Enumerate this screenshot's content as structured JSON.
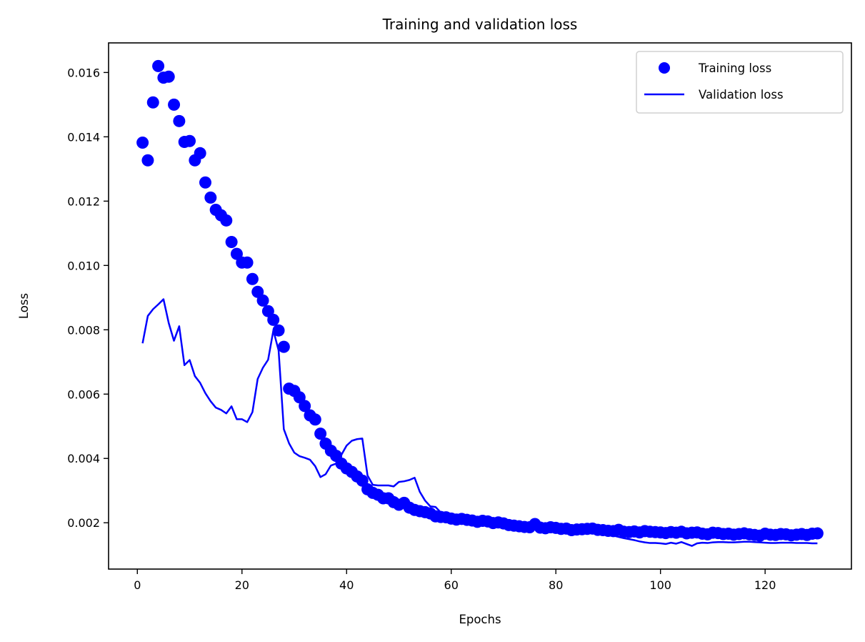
{
  "chart_data": {
    "type": "line",
    "title": "Training and validation loss",
    "xlabel": "Epochs",
    "ylabel": "Loss",
    "xlim": [
      -5.5,
      136.5
    ],
    "ylim": [
      0.00056,
      0.01692
    ],
    "xticks": [
      0,
      20,
      40,
      60,
      80,
      100,
      120
    ],
    "xtick_labels": [
      "0",
      "20",
      "40",
      "60",
      "80",
      "100",
      "120"
    ],
    "yticks": [
      0.002,
      0.004,
      0.006,
      0.008,
      0.01,
      0.012,
      0.014,
      0.016
    ],
    "ytick_labels": [
      "0.002",
      "0.004",
      "0.006",
      "0.008",
      "0.010",
      "0.012",
      "0.014",
      "0.016"
    ],
    "grid": false,
    "legend_position": "upper-right",
    "color": "#0000ff",
    "series": [
      {
        "name": "Training loss",
        "style": "markers",
        "x_start": 1,
        "values": [
          0.01382,
          0.01327,
          0.01507,
          0.0162,
          0.01584,
          0.01587,
          0.015,
          0.01449,
          0.01384,
          0.01387,
          0.01327,
          0.01349,
          0.01258,
          0.01211,
          0.01173,
          0.01156,
          0.0114,
          0.01073,
          0.01036,
          0.01009,
          0.01009,
          0.00958,
          0.00918,
          0.00891,
          0.00858,
          0.00831,
          0.00798,
          0.00747,
          0.00617,
          0.0061,
          0.0059,
          0.00563,
          0.00534,
          0.00521,
          0.00477,
          0.00446,
          0.00424,
          0.00408,
          0.00384,
          0.00369,
          0.00358,
          0.00344,
          0.00331,
          0.00304,
          0.00293,
          0.00287,
          0.00276,
          0.00276,
          0.00264,
          0.00256,
          0.00262,
          0.00247,
          0.0024,
          0.00236,
          0.00233,
          0.00229,
          0.0022,
          0.00218,
          0.00217,
          0.00213,
          0.0021,
          0.00212,
          0.00209,
          0.00207,
          0.00203,
          0.00206,
          0.00204,
          0.00199,
          0.00201,
          0.00198,
          0.00193,
          0.00191,
          0.00189,
          0.00187,
          0.00186,
          0.00196,
          0.00185,
          0.00183,
          0.00186,
          0.00184,
          0.00181,
          0.00182,
          0.00177,
          0.00179,
          0.0018,
          0.00181,
          0.00182,
          0.00178,
          0.00177,
          0.00175,
          0.00174,
          0.00178,
          0.00172,
          0.00171,
          0.00173,
          0.0017,
          0.00174,
          0.00172,
          0.00171,
          0.0017,
          0.00168,
          0.00171,
          0.00169,
          0.00172,
          0.00167,
          0.00169,
          0.0017,
          0.00166,
          0.00164,
          0.00169,
          0.00168,
          0.00165,
          0.00166,
          0.00163,
          0.00165,
          0.00167,
          0.00164,
          0.00162,
          0.0016,
          0.00166,
          0.00163,
          0.00162,
          0.00165,
          0.00164,
          0.00161,
          0.00163,
          0.00165,
          0.00162,
          0.00166,
          0.00167
        ]
      },
      {
        "name": "Validation loss",
        "style": "line",
        "x_start": 1,
        "values": [
          0.00758,
          0.00843,
          0.00864,
          0.00879,
          0.00895,
          0.00821,
          0.00766,
          0.00811,
          0.0069,
          0.00706,
          0.00656,
          0.00635,
          0.00603,
          0.00578,
          0.00558,
          0.00551,
          0.0054,
          0.00562,
          0.00522,
          0.00522,
          0.00513,
          0.00544,
          0.00647,
          0.00682,
          0.00707,
          0.00798,
          0.00736,
          0.00491,
          0.00447,
          0.00418,
          0.00407,
          0.00402,
          0.00396,
          0.00376,
          0.00342,
          0.00351,
          0.00378,
          0.00384,
          0.00411,
          0.0044,
          0.00455,
          0.0046,
          0.00462,
          0.00347,
          0.00318,
          0.00316,
          0.00316,
          0.00316,
          0.00313,
          0.00327,
          0.00329,
          0.00333,
          0.0034,
          0.00296,
          0.00269,
          0.00251,
          0.00249,
          0.00232,
          0.00225,
          0.0022,
          0.00214,
          0.00212,
          0.00208,
          0.00206,
          0.00203,
          0.002,
          0.00198,
          0.00196,
          0.00194,
          0.00192,
          0.0019,
          0.00188,
          0.00186,
          0.00184,
          0.00183,
          0.00181,
          0.00179,
          0.00178,
          0.00177,
          0.00176,
          0.00174,
          0.00173,
          0.00172,
          0.00171,
          0.0017,
          0.00169,
          0.00168,
          0.00167,
          0.00166,
          0.00164,
          0.0016,
          0.00156,
          0.00152,
          0.00149,
          0.00146,
          0.00142,
          0.00139,
          0.00137,
          0.00137,
          0.00136,
          0.00134,
          0.00138,
          0.00135,
          0.0014,
          0.00134,
          0.00128,
          0.00136,
          0.00138,
          0.00137,
          0.00139,
          0.0014,
          0.0014,
          0.00139,
          0.00139,
          0.0014,
          0.00141,
          0.00141,
          0.0014,
          0.00139,
          0.00138,
          0.00137,
          0.00137,
          0.00138,
          0.00138,
          0.00138,
          0.00137,
          0.00137,
          0.00137,
          0.00136,
          0.00136
        ]
      }
    ]
  }
}
